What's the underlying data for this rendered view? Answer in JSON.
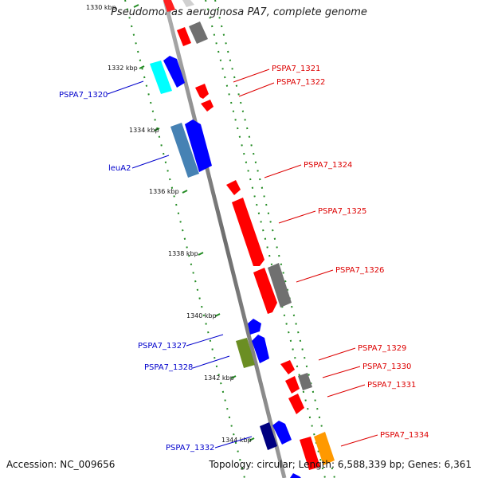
{
  "title": "Pseudomonas aeruginosa PA7, complete genome",
  "accession": "Accession: NC_009656",
  "genome_info": "Topology: circular; Length: 6,588,339 bp; Genes: 6,361",
  "ticks": [
    "1330 kbp",
    "1332 kbp",
    "1334 kbp",
    "1336 kbp",
    "1338 kbp",
    "1340 kbp",
    "1342 kbp",
    "1344 kbp"
  ],
  "genes_forward": [
    {
      "label": "PSPA7_1321",
      "color": "#ff0000"
    },
    {
      "label": "PSPA7_1322",
      "color": "#ff0000"
    },
    {
      "label": "PSPA7_1324",
      "color": "#ff0000"
    },
    {
      "label": "PSPA7_1325",
      "color": "#ff0000"
    },
    {
      "label": "PSPA7_1326",
      "color": "#808080"
    },
    {
      "label": "PSPA7_1329",
      "color": "#ff0000"
    },
    {
      "label": "PSPA7_1330",
      "color": "#ff0000"
    },
    {
      "label": "PSPA7_1331",
      "color": "#ff0000"
    },
    {
      "label": "PSPA7_1334",
      "color": "#ff9900"
    }
  ],
  "genes_reverse": [
    {
      "label": "PSPA7_1320",
      "color": "#00ffff"
    },
    {
      "label": "leuA2",
      "color": "#4682b4"
    },
    {
      "label": "PSPA7_1327",
      "color": "#6b8e23"
    },
    {
      "label": "PSPA7_1328",
      "color": "#6b8e23"
    },
    {
      "label": "PSPA7_1332",
      "color": "#000080"
    }
  ],
  "colors": {
    "forward_label": "#dd0000",
    "reverse_label": "#0000cc",
    "backbone": "#888888",
    "ruler": "#228b22"
  }
}
